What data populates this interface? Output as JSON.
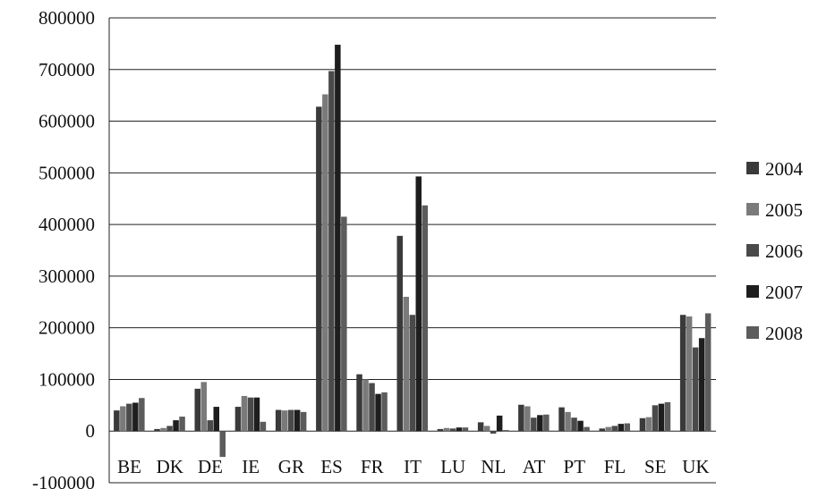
{
  "chart_data": {
    "type": "bar",
    "title": "",
    "xlabel": "",
    "ylabel": "",
    "ylim": [
      -100000,
      800000
    ],
    "yticks": [
      "800000",
      "700000",
      "600000",
      "500000",
      "400000",
      "300000",
      "200000",
      "100000",
      "0",
      "-100000"
    ],
    "grid": true,
    "legend_position": "right",
    "categories": [
      "BE",
      "DK",
      "DE",
      "IE",
      "GR",
      "ES",
      "FR",
      "IT",
      "LU",
      "NL",
      "AT",
      "PT",
      "FL",
      "SE",
      "UK"
    ],
    "series": [
      {
        "name": "2004",
        "color": "#3a3a3a",
        "values": [
          40000,
          4000,
          82000,
          47000,
          41000,
          628000,
          110000,
          378000,
          4000,
          17000,
          51000,
          46000,
          5000,
          25000,
          225000
        ]
      },
      {
        "name": "2005",
        "color": "#7a7a7a",
        "values": [
          48000,
          6000,
          95000,
          68000,
          40000,
          652000,
          100000,
          260000,
          6000,
          10000,
          48000,
          37000,
          8000,
          27000,
          222000
        ]
      },
      {
        "name": "2006",
        "color": "#4a4a4a",
        "values": [
          53000,
          10000,
          21000,
          65000,
          41000,
          697000,
          93000,
          225000,
          5000,
          -5000,
          26000,
          26000,
          10000,
          50000,
          162000
        ]
      },
      {
        "name": "2007",
        "color": "#1e1e1e",
        "values": [
          55000,
          21000,
          47000,
          65000,
          41000,
          748000,
          72000,
          493000,
          7000,
          30000,
          31000,
          20000,
          14000,
          53000,
          180000
        ]
      },
      {
        "name": "2008",
        "color": "#5c5c5c",
        "values": [
          64000,
          28000,
          -50000,
          18000,
          37000,
          415000,
          75000,
          437000,
          7000,
          2000,
          32000,
          8000,
          15000,
          56000,
          228000
        ]
      }
    ]
  }
}
